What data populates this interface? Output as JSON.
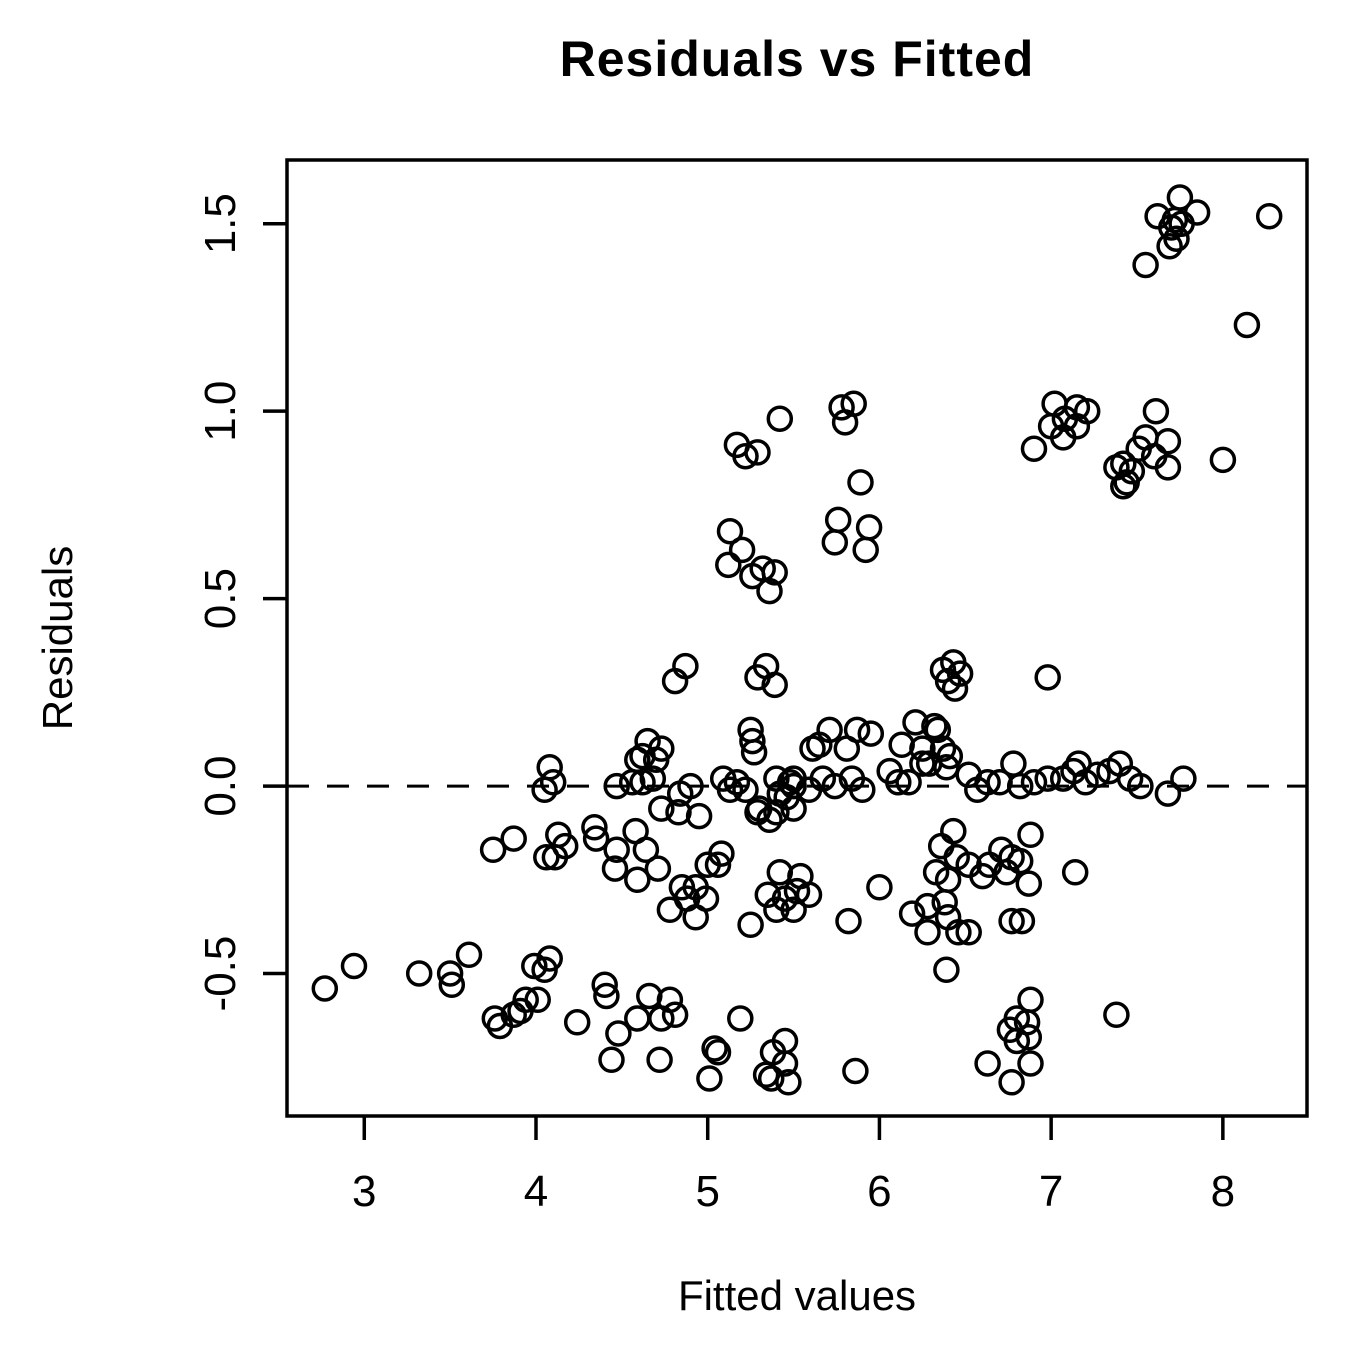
{
  "colors": {
    "foreground": "#000000",
    "background": "#ffffff"
  },
  "chart_data": {
    "type": "scatter",
    "title": "Residuals vs Fitted",
    "xlabel": "Fitted values",
    "ylabel": "Residuals",
    "marker": "open-circle",
    "grid": false,
    "xlim": [
      2.55,
      8.49
    ],
    "ylim": [
      -0.88,
      1.67
    ],
    "x_ticks": [
      3,
      4,
      5,
      6,
      7,
      8
    ],
    "x_tick_labels": [
      "3",
      "4",
      "5",
      "6",
      "7",
      "8"
    ],
    "y_ticks": [
      -0.5,
      0.0,
      0.5,
      1.0,
      1.5
    ],
    "y_tick_labels": [
      "-0.5",
      "0.0",
      "0.5",
      "1.0",
      "1.5"
    ],
    "zero_line": {
      "y": 0.0,
      "style": "dashed"
    },
    "points": [
      [
        5.42,
        0.98
      ],
      [
        5.78,
        1.01
      ],
      [
        5.85,
        1.02
      ],
      [
        5.8,
        0.97
      ],
      [
        5.17,
        0.91
      ],
      [
        5.22,
        0.88
      ],
      [
        5.29,
        0.89
      ],
      [
        5.89,
        0.81
      ],
      [
        5.76,
        0.71
      ],
      [
        5.94,
        0.69
      ],
      [
        5.74,
        0.65
      ],
      [
        5.92,
        0.63
      ],
      [
        5.13,
        0.68
      ],
      [
        5.2,
        0.63
      ],
      [
        5.12,
        0.59
      ],
      [
        5.26,
        0.56
      ],
      [
        5.32,
        0.58
      ],
      [
        5.39,
        0.57
      ],
      [
        5.36,
        0.52
      ],
      [
        7.75,
        1.57
      ],
      [
        7.62,
        1.52
      ],
      [
        7.85,
        1.53
      ],
      [
        7.72,
        1.51
      ],
      [
        7.76,
        1.5
      ],
      [
        7.7,
        1.49
      ],
      [
        7.73,
        1.46
      ],
      [
        7.69,
        1.44
      ],
      [
        8.27,
        1.52
      ],
      [
        7.55,
        1.39
      ],
      [
        8.14,
        1.23
      ],
      [
        7.02,
        1.02
      ],
      [
        7.15,
        1.01
      ],
      [
        7.21,
        1.0
      ],
      [
        7.08,
        0.98
      ],
      [
        7.0,
        0.96
      ],
      [
        7.15,
        0.96
      ],
      [
        7.07,
        0.93
      ],
      [
        6.9,
        0.9
      ],
      [
        7.61,
        1.0
      ],
      [
        7.55,
        0.93
      ],
      [
        7.68,
        0.92
      ],
      [
        7.51,
        0.9
      ],
      [
        7.6,
        0.88
      ],
      [
        7.68,
        0.85
      ],
      [
        7.42,
        0.86
      ],
      [
        7.47,
        0.84
      ],
      [
        7.38,
        0.85
      ],
      [
        7.42,
        0.8
      ],
      [
        7.44,
        0.81
      ],
      [
        8.0,
        0.87
      ],
      [
        4.87,
        0.32
      ],
      [
        4.81,
        0.28
      ],
      [
        5.34,
        0.32
      ],
      [
        5.29,
        0.29
      ],
      [
        5.39,
        0.27
      ],
      [
        6.43,
        0.33
      ],
      [
        6.37,
        0.31
      ],
      [
        6.47,
        0.3
      ],
      [
        6.4,
        0.28
      ],
      [
        6.44,
        0.26
      ],
      [
        6.98,
        0.29
      ],
      [
        5.25,
        0.15
      ],
      [
        5.26,
        0.12
      ],
      [
        5.27,
        0.09
      ],
      [
        4.65,
        0.12
      ],
      [
        4.73,
        0.1
      ],
      [
        4.62,
        0.08
      ],
      [
        4.7,
        0.07
      ],
      [
        4.59,
        0.07
      ],
      [
        5.71,
        0.15
      ],
      [
        5.87,
        0.15
      ],
      [
        5.95,
        0.14
      ],
      [
        5.65,
        0.11
      ],
      [
        5.81,
        0.1
      ],
      [
        5.61,
        0.1
      ],
      [
        6.21,
        0.17
      ],
      [
        6.32,
        0.16
      ],
      [
        6.34,
        0.15
      ],
      [
        6.13,
        0.11
      ],
      [
        6.25,
        0.1
      ],
      [
        6.37,
        0.1
      ],
      [
        6.41,
        0.08
      ],
      [
        6.25,
        0.06
      ],
      [
        6.29,
        0.06
      ],
      [
        6.39,
        0.05
      ],
      [
        6.06,
        0.04
      ],
      [
        6.11,
        0.01
      ],
      [
        6.17,
        0.01
      ],
      [
        4.08,
        0.05
      ],
      [
        4.1,
        0.01
      ],
      [
        4.05,
        -0.01
      ],
      [
        4.47,
        0.0
      ],
      [
        4.56,
        0.01
      ],
      [
        4.62,
        0.01
      ],
      [
        4.68,
        0.02
      ],
      [
        4.9,
        0.0
      ],
      [
        4.84,
        -0.02
      ],
      [
        5.09,
        0.02
      ],
      [
        5.17,
        0.01
      ],
      [
        5.22,
        -0.01
      ],
      [
        5.13,
        -0.01
      ],
      [
        5.4,
        0.02
      ],
      [
        5.48,
        0.01
      ],
      [
        5.5,
        0.02
      ],
      [
        5.42,
        -0.02
      ],
      [
        5.74,
        0.0
      ],
      [
        5.84,
        0.02
      ],
      [
        5.9,
        -0.01
      ],
      [
        5.67,
        0.02
      ],
      [
        5.59,
        -0.01
      ],
      [
        5.5,
        0.0
      ],
      [
        5.46,
        -0.03
      ],
      [
        6.52,
        0.03
      ],
      [
        6.57,
        -0.01
      ],
      [
        6.63,
        0.01
      ],
      [
        6.7,
        0.01
      ],
      [
        6.78,
        0.06
      ],
      [
        6.82,
        0.0
      ],
      [
        6.9,
        0.01
      ],
      [
        6.98,
        0.02
      ],
      [
        7.07,
        0.02
      ],
      [
        7.13,
        0.04
      ],
      [
        7.16,
        0.06
      ],
      [
        7.2,
        0.01
      ],
      [
        7.27,
        0.03
      ],
      [
        7.34,
        0.04
      ],
      [
        7.4,
        0.06
      ],
      [
        7.46,
        0.02
      ],
      [
        7.52,
        0.0
      ],
      [
        7.77,
        0.02
      ],
      [
        7.68,
        -0.02
      ],
      [
        4.73,
        -0.06
      ],
      [
        4.83,
        -0.07
      ],
      [
        4.95,
        -0.08
      ],
      [
        5.29,
        -0.07
      ],
      [
        5.4,
        -0.07
      ],
      [
        5.5,
        -0.06
      ],
      [
        5.3,
        -0.06
      ],
      [
        5.36,
        -0.09
      ],
      [
        4.58,
        -0.12
      ],
      [
        4.64,
        -0.17
      ],
      [
        4.71,
        -0.22
      ],
      [
        4.59,
        -0.25
      ],
      [
        4.34,
        -0.11
      ],
      [
        4.35,
        -0.14
      ],
      [
        4.46,
        -0.22
      ],
      [
        4.47,
        -0.17
      ],
      [
        3.75,
        -0.17
      ],
      [
        3.87,
        -0.14
      ],
      [
        4.13,
        -0.13
      ],
      [
        4.17,
        -0.16
      ],
      [
        4.11,
        -0.19
      ],
      [
        4.06,
        -0.19
      ],
      [
        5.08,
        -0.18
      ],
      [
        5.06,
        -0.21
      ],
      [
        5.0,
        -0.21
      ],
      [
        4.85,
        -0.27
      ],
      [
        4.93,
        -0.27
      ],
      [
        4.99,
        -0.3
      ],
      [
        4.88,
        -0.3
      ],
      [
        4.78,
        -0.33
      ],
      [
        4.93,
        -0.35
      ],
      [
        5.42,
        -0.23
      ],
      [
        5.54,
        -0.24
      ],
      [
        5.59,
        -0.29
      ],
      [
        5.35,
        -0.29
      ],
      [
        5.45,
        -0.3
      ],
      [
        5.52,
        -0.28
      ],
      [
        5.4,
        -0.33
      ],
      [
        5.5,
        -0.33
      ],
      [
        5.25,
        -0.37
      ],
      [
        6.0,
        -0.27
      ],
      [
        5.82,
        -0.36
      ],
      [
        6.36,
        -0.16
      ],
      [
        6.43,
        -0.12
      ],
      [
        6.45,
        -0.19
      ],
      [
        6.33,
        -0.23
      ],
      [
        6.4,
        -0.25
      ],
      [
        6.19,
        -0.34
      ],
      [
        6.28,
        -0.32
      ],
      [
        6.38,
        -0.31
      ],
      [
        6.4,
        -0.35
      ],
      [
        6.28,
        -0.39
      ],
      [
        6.46,
        -0.39
      ],
      [
        6.88,
        -0.13
      ],
      [
        6.71,
        -0.17
      ],
      [
        6.77,
        -0.19
      ],
      [
        6.64,
        -0.21
      ],
      [
        6.74,
        -0.23
      ],
      [
        6.6,
        -0.24
      ],
      [
        6.82,
        -0.2
      ],
      [
        6.87,
        -0.26
      ],
      [
        7.14,
        -0.23
      ],
      [
        6.52,
        -0.21
      ],
      [
        6.77,
        -0.36
      ],
      [
        6.83,
        -0.36
      ],
      [
        6.52,
        -0.39
      ],
      [
        6.39,
        -0.49
      ],
      [
        2.77,
        -0.54
      ],
      [
        2.94,
        -0.48
      ],
      [
        3.32,
        -0.5
      ],
      [
        3.5,
        -0.5
      ],
      [
        3.51,
        -0.53
      ],
      [
        3.61,
        -0.45
      ],
      [
        3.99,
        -0.48
      ],
      [
        4.08,
        -0.46
      ],
      [
        4.05,
        -0.49
      ],
      [
        4.4,
        -0.53
      ],
      [
        4.41,
        -0.56
      ],
      [
        3.94,
        -0.57
      ],
      [
        4.01,
        -0.57
      ],
      [
        3.91,
        -0.6
      ],
      [
        3.87,
        -0.61
      ],
      [
        3.76,
        -0.62
      ],
      [
        3.79,
        -0.64
      ],
      [
        4.24,
        -0.63
      ],
      [
        4.48,
        -0.66
      ],
      [
        4.44,
        -0.73
      ],
      [
        4.66,
        -0.56
      ],
      [
        4.78,
        -0.57
      ],
      [
        4.81,
        -0.61
      ],
      [
        4.73,
        -0.62
      ],
      [
        4.59,
        -0.62
      ],
      [
        4.72,
        -0.73
      ],
      [
        5.19,
        -0.62
      ],
      [
        5.06,
        -0.71
      ],
      [
        5.04,
        -0.7
      ],
      [
        5.01,
        -0.78
      ],
      [
        5.45,
        -0.68
      ],
      [
        5.38,
        -0.71
      ],
      [
        5.45,
        -0.74
      ],
      [
        5.37,
        -0.78
      ],
      [
        5.47,
        -0.79
      ],
      [
        5.34,
        -0.77
      ],
      [
        5.86,
        -0.76
      ],
      [
        6.88,
        -0.57
      ],
      [
        6.8,
        -0.62
      ],
      [
        6.86,
        -0.63
      ],
      [
        6.76,
        -0.65
      ],
      [
        6.87,
        -0.67
      ],
      [
        6.8,
        -0.68
      ],
      [
        6.63,
        -0.74
      ],
      [
        6.88,
        -0.74
      ],
      [
        6.77,
        -0.79
      ],
      [
        7.38,
        -0.61
      ]
    ]
  }
}
